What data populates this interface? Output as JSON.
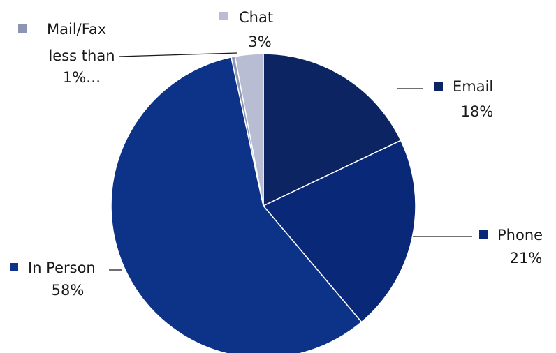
{
  "chart_data": {
    "type": "pie",
    "title": "",
    "start_angle_deg": 0,
    "direction": "clockwise",
    "slices": [
      {
        "name": "Email",
        "value": 18,
        "label": "18%",
        "color": "#0c2461"
      },
      {
        "name": "Phone",
        "value": 21,
        "label": "21%",
        "color": "#0a2878"
      },
      {
        "name": "In Person",
        "value": 58,
        "label": "58%",
        "color": "#0d3389"
      },
      {
        "name": "Mail/Fax",
        "value": 0.4,
        "label": "less than 1%…",
        "color": "#8d95b5"
      },
      {
        "name": "Chat",
        "value": 3,
        "label": "3%",
        "color": "#b9bdd3"
      }
    ]
  }
}
